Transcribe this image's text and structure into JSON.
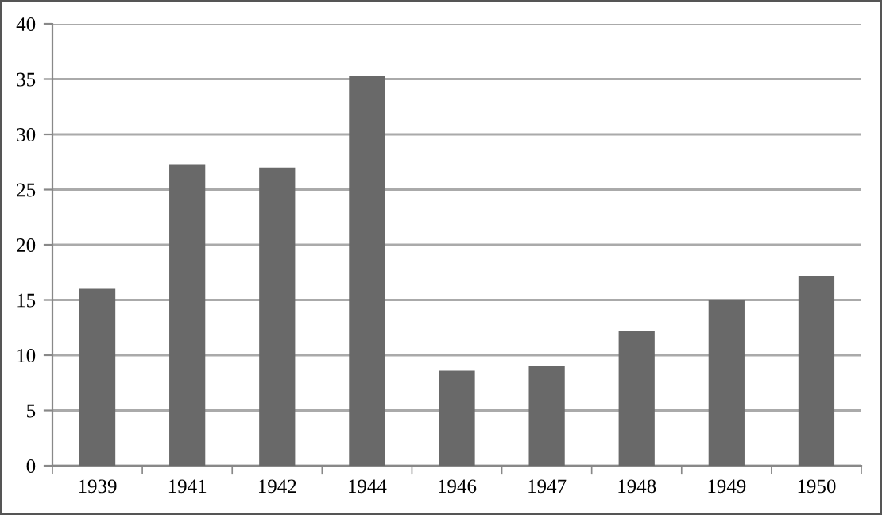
{
  "chart_data": {
    "type": "bar",
    "categories": [
      "1939",
      "1941",
      "1942",
      "1944",
      "1946",
      "1947",
      "1948",
      "1949",
      "1950"
    ],
    "values": [
      16,
      27.3,
      27.0,
      35.3,
      8.6,
      9.0,
      12.2,
      15.0,
      17.2
    ],
    "color": "#696969",
    "ylim": [
      0,
      40
    ],
    "yticks": [
      0,
      5,
      10,
      15,
      20,
      25,
      30,
      35,
      40
    ],
    "grid": "y"
  }
}
